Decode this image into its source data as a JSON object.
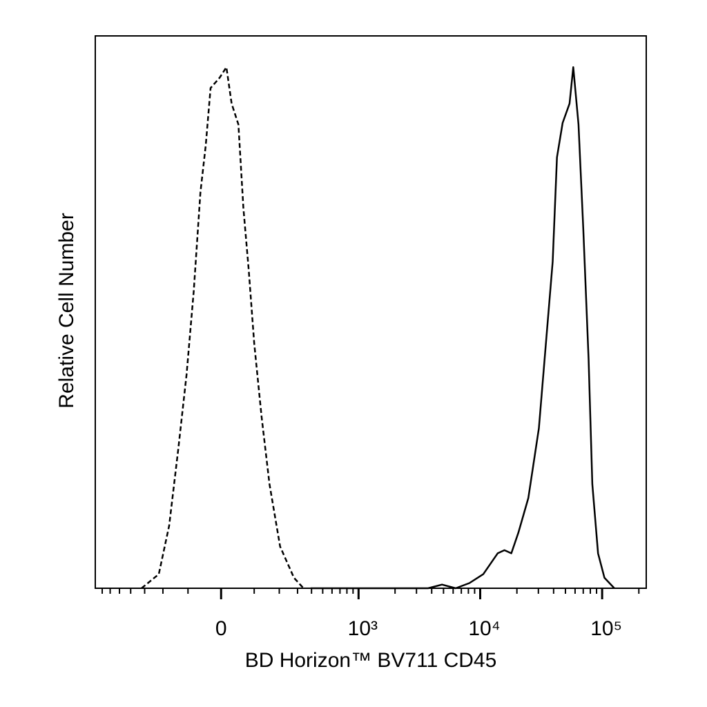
{
  "chart_data": {
    "type": "line",
    "xlabel": "BD Horizon™  BV711 CD45",
    "ylabel": "Relative Cell Number",
    "xscale": "biexponential",
    "xlim": [
      -800,
      230000
    ],
    "ylim": [
      0,
      106
    ],
    "xticks": [
      0,
      {
        "value": 1000,
        "label": "10³"
      },
      {
        "value": 10000,
        "label": "10⁴"
      },
      {
        "value": 100000,
        "label": "10⁵"
      }
    ],
    "xminorticks": [
      -700,
      -600,
      -500,
      -400,
      -300,
      -200,
      -100,
      100,
      200,
      300,
      400,
      500,
      600,
      700,
      800,
      900,
      2000,
      3000,
      4000,
      5000,
      6000,
      7000,
      8000,
      9000,
      20000,
      30000,
      40000,
      50000,
      60000,
      70000,
      80000,
      90000,
      200000
    ],
    "series": [
      {
        "style": "dashed",
        "color": "#000000",
        "x": [
          -320,
          -220,
          -172,
          -135,
          -105,
          -81,
          -60,
          -44,
          -30,
          -4,
          15,
          30,
          50,
          65,
          82,
          100,
          126,
          157,
          204,
          278,
          340
        ],
        "values": [
          0,
          2.7,
          12,
          26.7,
          41,
          57,
          76,
          85,
          96,
          98,
          100,
          93,
          89,
          73,
          61,
          47,
          33,
          20,
          8,
          2,
          0
        ]
      },
      {
        "style": "solid",
        "color": "#000000",
        "x": [
          393,
          3735,
          4860,
          6290,
          8160,
          10600,
          13900,
          15800,
          18000,
          20600,
          24800,
          30300,
          34500,
          39300,
          42600,
          47400,
          54000,
          58000,
          64000,
          70000,
          77400,
          83100,
          92600,
          104500,
          126000
        ],
        "values": [
          0,
          0,
          0.7,
          0,
          1,
          2.7,
          6.7,
          7.3,
          6.7,
          10.7,
          17.3,
          30.7,
          46.7,
          62.7,
          82.7,
          89.3,
          93,
          100,
          89,
          69,
          44,
          20,
          6.7,
          2,
          0
        ]
      }
    ]
  }
}
